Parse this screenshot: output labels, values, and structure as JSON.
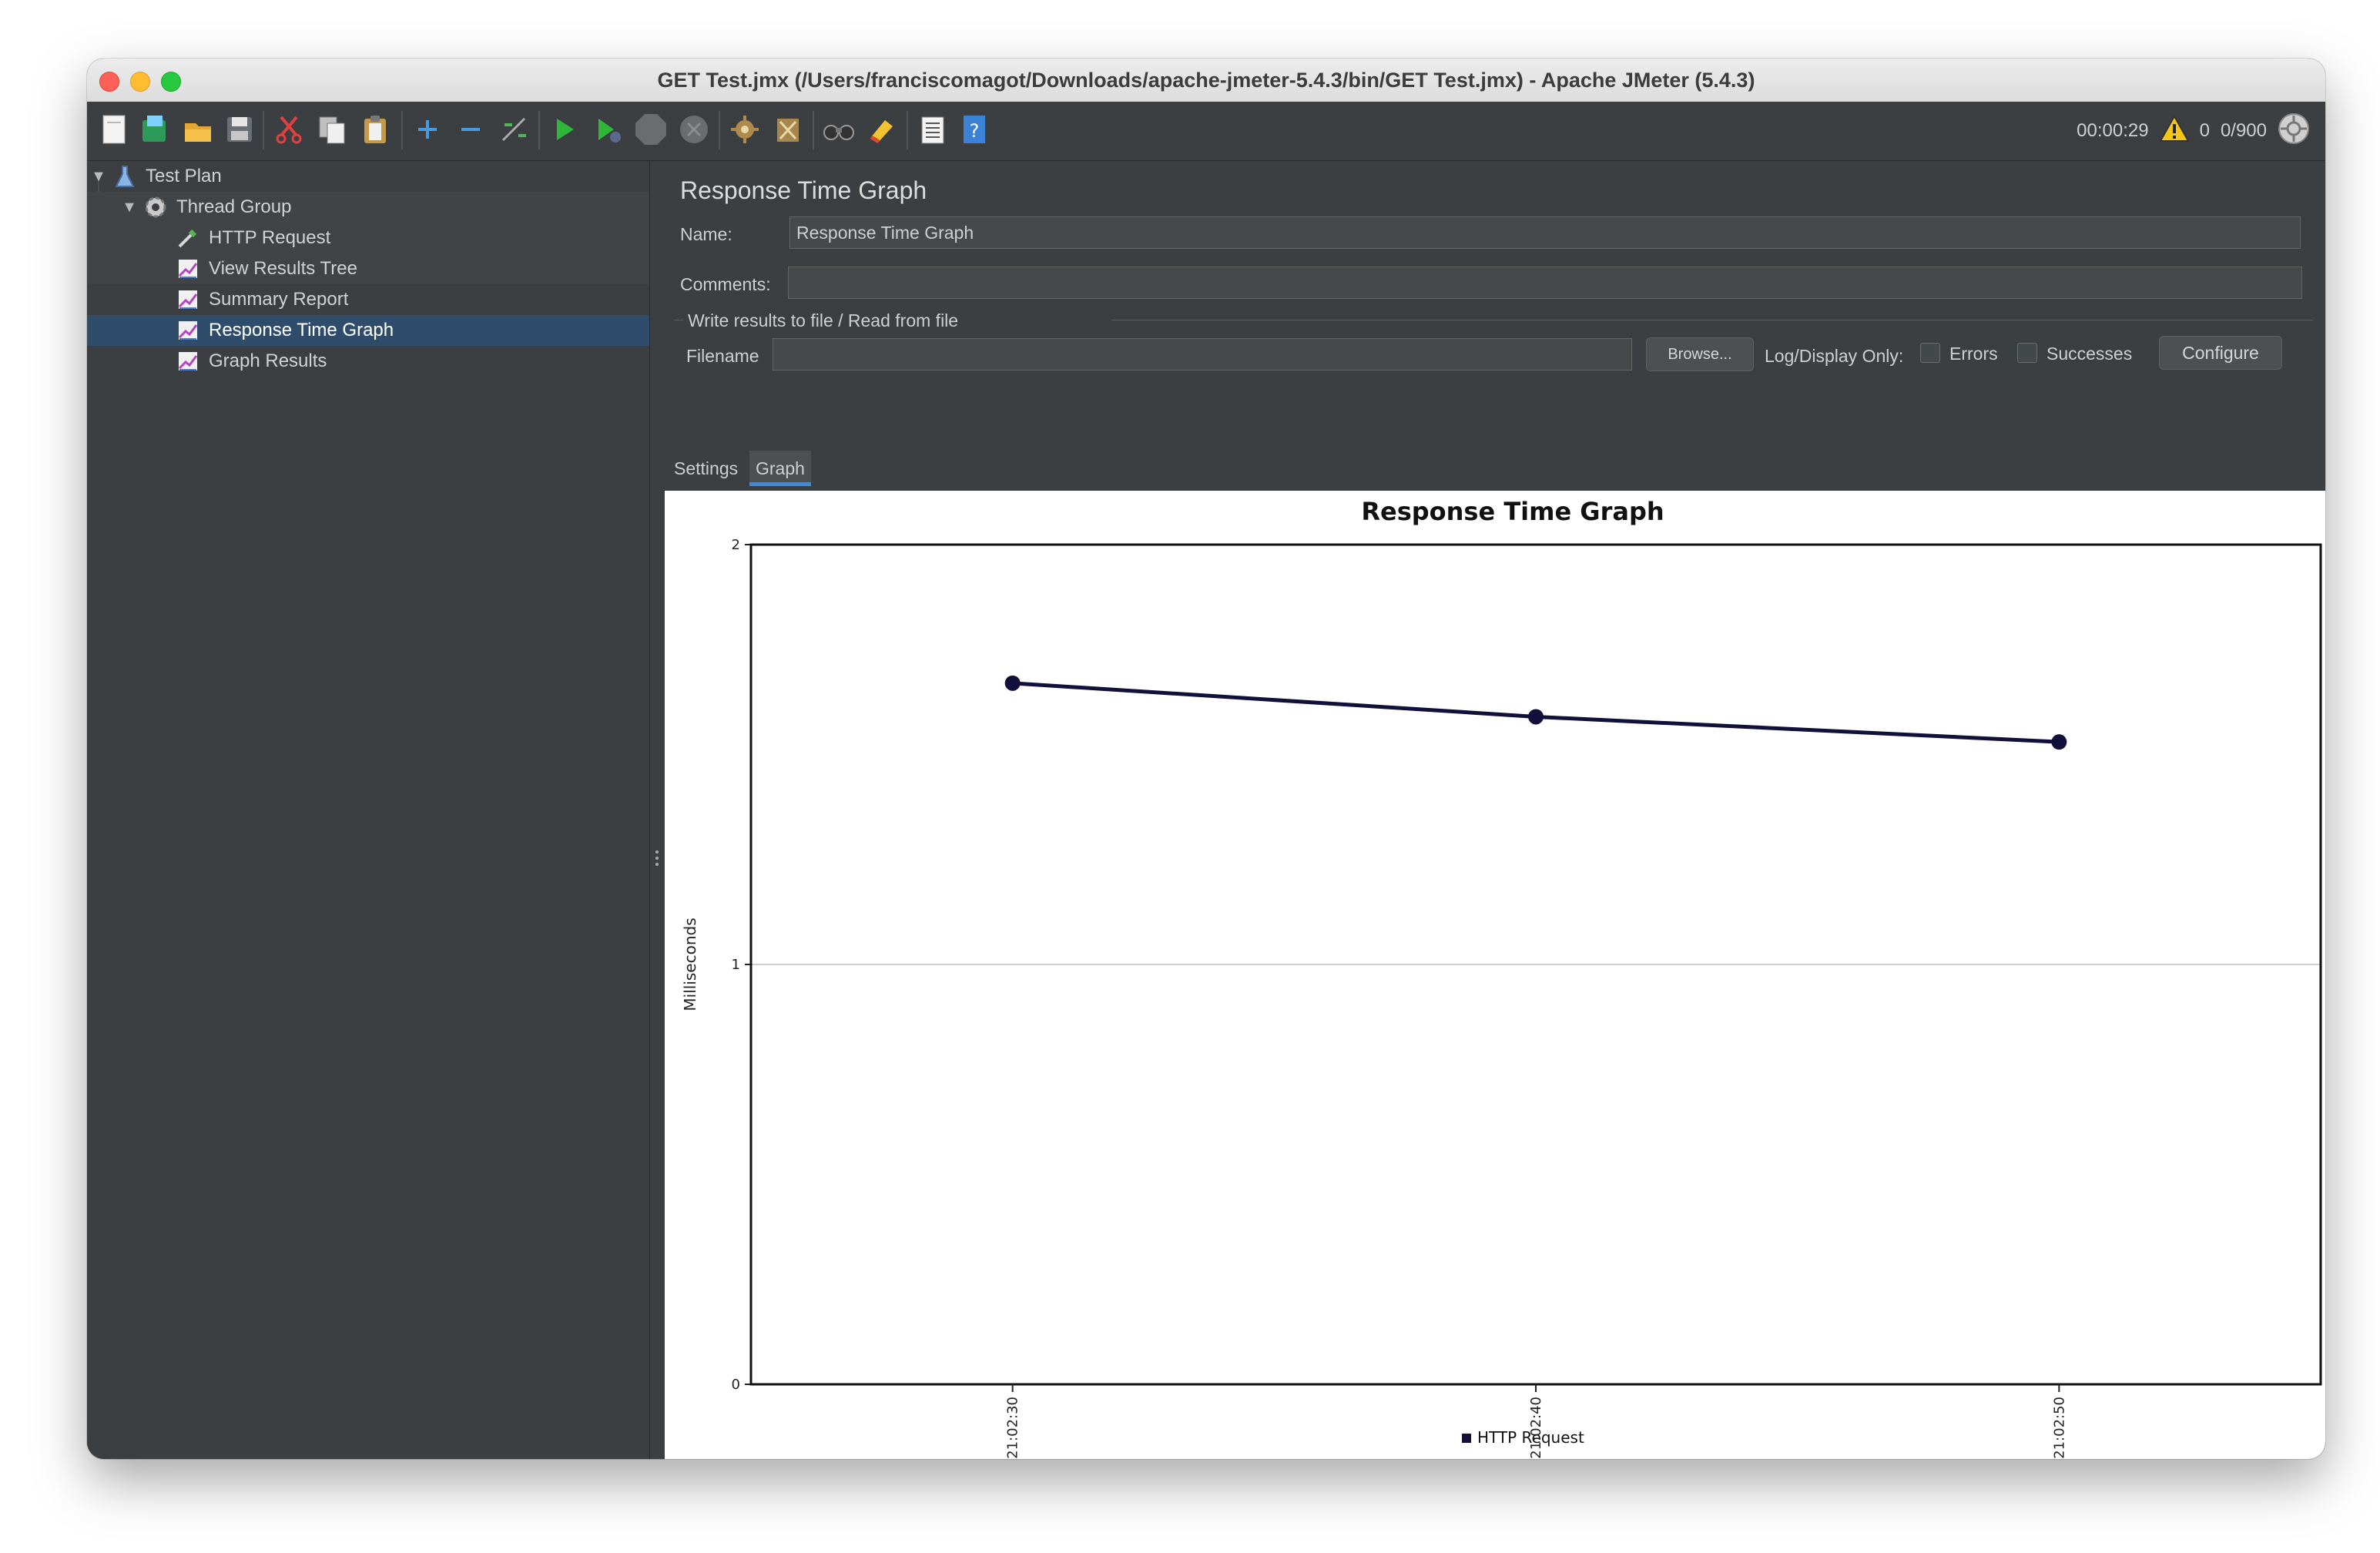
{
  "window": {
    "title": "GET Test.jmx (/Users/franciscomagot/Downloads/apache-jmeter-5.4.3/bin/GET Test.jmx) - Apache JMeter (5.4.3)"
  },
  "toolbar": {
    "icons": [
      "new-icon",
      "templates-icon",
      "open-icon",
      "save-icon",
      "cut-icon",
      "copy-icon",
      "paste-icon",
      "expand-icon",
      "collapse-icon",
      "toggle-icon",
      "start-icon",
      "start-no-pauses-icon",
      "stop-icon",
      "shutdown-icon",
      "clear-icon",
      "clear-all-icon",
      "search-icon",
      "reset-search-icon",
      "function-helper-icon",
      "help-icon"
    ],
    "elapsed_time": "00:00:29",
    "warning_count": "0",
    "threads": "0/900"
  },
  "tree": {
    "items": [
      {
        "label": "Test Plan",
        "icon": "flask-icon"
      },
      {
        "label": "Thread Group",
        "icon": "gear-icon"
      },
      {
        "label": "HTTP Request",
        "icon": "pipette-icon"
      },
      {
        "label": "View Results Tree",
        "icon": "chart-icon"
      },
      {
        "label": "Summary Report",
        "icon": "chart-icon"
      },
      {
        "label": "Response Time Graph",
        "icon": "chart-icon"
      },
      {
        "label": "Graph Results",
        "icon": "chart-icon"
      }
    ],
    "selected_index": 5
  },
  "panel": {
    "title": "Response Time Graph",
    "name_label": "Name:",
    "name_value": "Response Time Graph",
    "comments_label": "Comments:",
    "comments_value": "",
    "file_group_label": "Write results to file / Read from file",
    "filename_label": "Filename",
    "filename_value": "",
    "browse_label": "Browse...",
    "log_display_label": "Log/Display Only:",
    "errors_label": "Errors",
    "successes_label": "Successes",
    "configure_label": "Configure",
    "tabs": [
      "Settings",
      "Graph"
    ],
    "active_tab": "Graph"
  },
  "chart_data": {
    "type": "line",
    "title": "Response Time Graph",
    "xlabel": "",
    "ylabel": "Milliseconds",
    "x": [
      "21:02:30",
      "21:02:40",
      "21:02:50"
    ],
    "series": [
      {
        "name": "HTTP Request",
        "values": [
          1.67,
          1.59,
          1.53
        ],
        "color": "#10103a"
      }
    ],
    "ylim": [
      0,
      2
    ],
    "yticks": [
      "0",
      "1",
      "2"
    ],
    "grid": true,
    "legend_position": "bottom"
  }
}
